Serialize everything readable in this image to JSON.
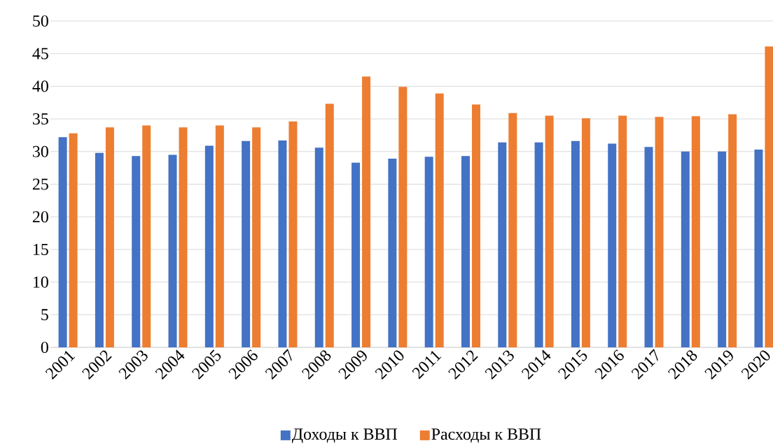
{
  "chart_data": {
    "type": "bar",
    "categories": [
      "2001",
      "2002",
      "2003",
      "2004",
      "2005",
      "2006",
      "2007",
      "2008",
      "2009",
      "2010",
      "2011",
      "2012",
      "2013",
      "2014",
      "2015",
      "2016",
      "2017",
      "2018",
      "2019",
      "2020"
    ],
    "series": [
      {
        "name": "Доходы к ВВП",
        "color": "#4472c4",
        "values": [
          32.2,
          29.8,
          29.3,
          29.5,
          30.9,
          31.6,
          31.7,
          30.6,
          28.3,
          28.9,
          29.2,
          29.3,
          31.4,
          31.4,
          31.6,
          31.2,
          30.7,
          30.0,
          30.0,
          30.3
        ]
      },
      {
        "name": "Расходы к ВВП",
        "color": "#ed7d31",
        "values": [
          32.8,
          33.7,
          34.0,
          33.7,
          34.0,
          33.7,
          34.6,
          37.3,
          41.5,
          39.9,
          38.9,
          37.2,
          35.9,
          35.5,
          35.1,
          35.5,
          35.3,
          35.4,
          35.7,
          46.1
        ]
      }
    ],
    "ylim": [
      0,
      50
    ],
    "yticks": [
      0,
      5,
      10,
      15,
      20,
      25,
      30,
      35,
      40,
      45,
      50
    ],
    "grid": "y",
    "legend": "bottom"
  }
}
